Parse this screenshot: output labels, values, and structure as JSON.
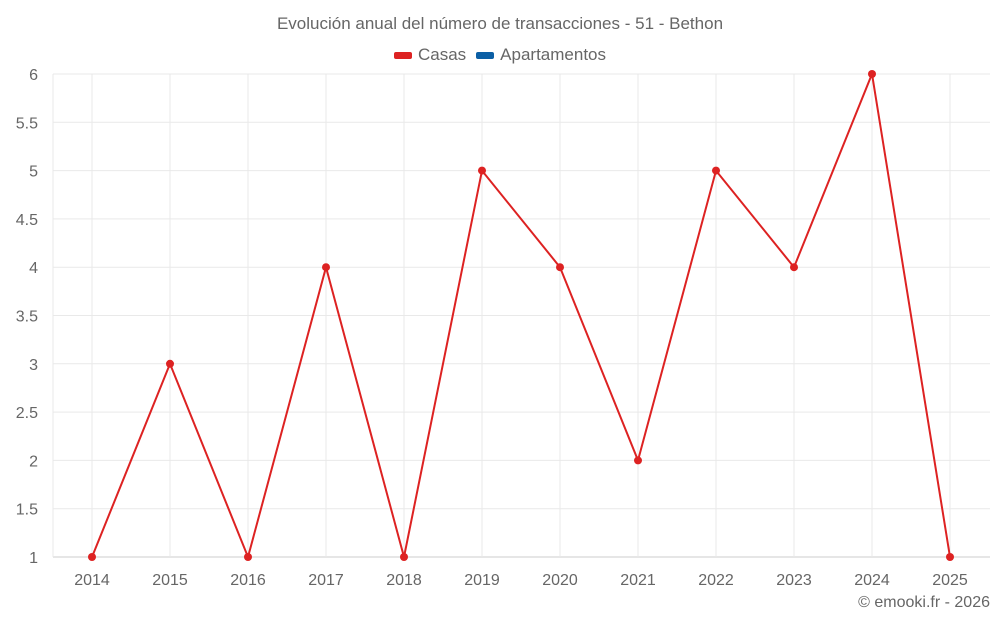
{
  "title": "Evolución anual del número de transacciones - 51 - Bethon",
  "legend": [
    {
      "label": "Casas",
      "color": "#dd2222"
    },
    {
      "label": "Apartamentos",
      "color": "#0b5fa5"
    }
  ],
  "credit": "© emooki.fr - 2026",
  "chart_data": {
    "type": "line",
    "title": "Evolución anual del número de transacciones - 51 - Bethon",
    "xlabel": "",
    "ylabel": "",
    "categories": [
      "2014",
      "2015",
      "2016",
      "2017",
      "2018",
      "2019",
      "2020",
      "2021",
      "2022",
      "2023",
      "2024",
      "2025"
    ],
    "series": [
      {
        "name": "Casas",
        "color": "#dd2222",
        "values": [
          1,
          3,
          1,
          4,
          1,
          5,
          4,
          2,
          5,
          4,
          6,
          1
        ]
      },
      {
        "name": "Apartamentos",
        "color": "#0b5fa5",
        "values": []
      }
    ],
    "ylim": [
      1,
      6
    ],
    "yticks": [
      1,
      1.5,
      2,
      2.5,
      3,
      3.5,
      4,
      4.5,
      5,
      5.5,
      6
    ],
    "grid": true,
    "legend_position": "top"
  }
}
